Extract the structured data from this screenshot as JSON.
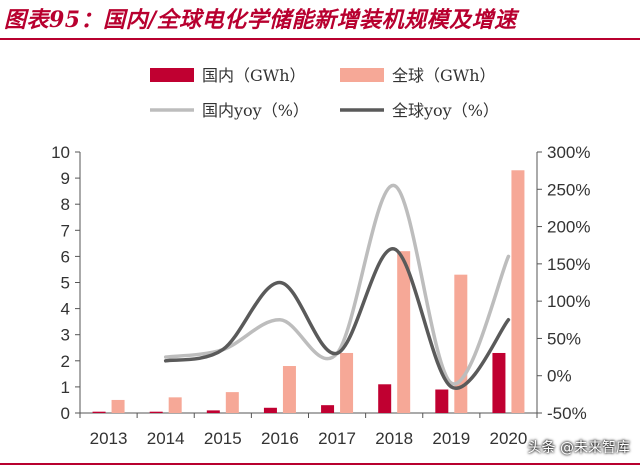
{
  "header": {
    "title": "图表95：国内/全球电化学储能新增装机规模及增速"
  },
  "watermark": "头条 @未来智库",
  "colors": {
    "accent": "#b8002f",
    "domestic_bar": "#c00031",
    "global_bar": "#f6a897",
    "domestic_yoy": "#bdbdbd",
    "global_yoy": "#5a5a5a"
  },
  "chart_data": {
    "type": "bar",
    "title": "图表95：国内/全球电化学储能新增装机规模及增速",
    "categories": [
      "2013",
      "2014",
      "2015",
      "2016",
      "2017",
      "2018",
      "2019",
      "2020"
    ],
    "series": [
      {
        "name": "国内（GWh）",
        "type": "bar",
        "axis": "left",
        "values": [
          0.05,
          0.05,
          0.1,
          0.2,
          0.3,
          1.1,
          0.9,
          2.3
        ]
      },
      {
        "name": "全球（GWh）",
        "type": "bar",
        "axis": "left",
        "values": [
          0.5,
          0.6,
          0.8,
          1.8,
          2.3,
          6.2,
          5.3,
          9.3
        ]
      },
      {
        "name": "国内yoy（%）",
        "type": "line",
        "axis": "right",
        "values": [
          null,
          25,
          35,
          75,
          30,
          255,
          -10,
          160
        ]
      },
      {
        "name": "全球yoy（%）",
        "type": "line",
        "axis": "right",
        "values": [
          null,
          20,
          35,
          125,
          30,
          170,
          -15,
          75
        ]
      }
    ],
    "left_axis": {
      "ylim": [
        0,
        10
      ],
      "ticks": [
        "0",
        "1",
        "2",
        "3",
        "4",
        "5",
        "6",
        "7",
        "8",
        "9",
        "10"
      ]
    },
    "right_axis": {
      "ylim": [
        -50,
        300
      ],
      "ticks": [
        "-50%",
        "0%",
        "50%",
        "100%",
        "150%",
        "200%",
        "250%",
        "300%"
      ]
    },
    "legend": {
      "placement": "top",
      "items": [
        "国内（GWh）",
        "全球（GWh）",
        "国内yoy（%）",
        "全球yoy（%）"
      ]
    },
    "grid": false
  }
}
